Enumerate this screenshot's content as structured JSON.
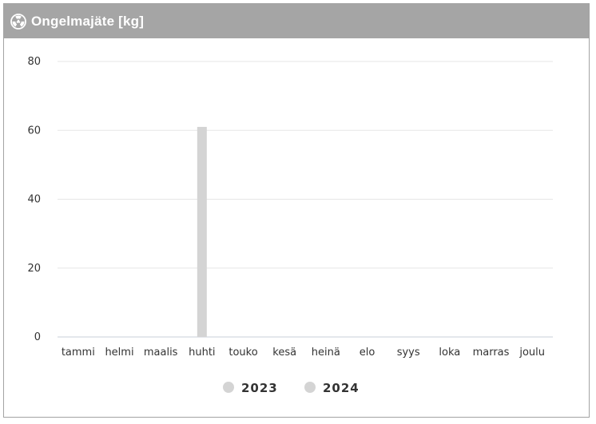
{
  "panel": {
    "title": "Ongelmajäte [kg]",
    "icon": "radiation-icon",
    "header_color": "#a5a5a5"
  },
  "chart_data": {
    "type": "bar",
    "title": "Ongelmajäte [kg]",
    "xlabel": "",
    "ylabel": "",
    "categories": [
      "tammi",
      "helmi",
      "maalis",
      "huhti",
      "touko",
      "kesä",
      "heinä",
      "elo",
      "syys",
      "loka",
      "marras",
      "joulu"
    ],
    "series": [
      {
        "name": "2023",
        "color": "#d4d4d4",
        "values": [
          0,
          0,
          0,
          61,
          0,
          0,
          0,
          0,
          0,
          0,
          0,
          0
        ]
      },
      {
        "name": "2024",
        "color": "#d4d4d4",
        "values": [
          0,
          0,
          0,
          0,
          0,
          0,
          0,
          0,
          0,
          0,
          0,
          0
        ]
      }
    ],
    "ylim": [
      0,
      80
    ],
    "yticks": [
      "0",
      "20",
      "40",
      "60",
      "80"
    ],
    "grid": true,
    "legend_position": "bottom"
  }
}
